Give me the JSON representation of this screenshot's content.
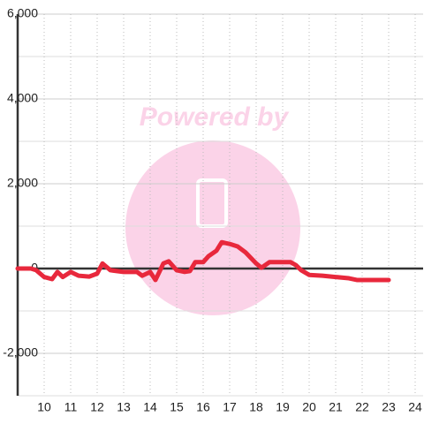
{
  "chart_data": {
    "type": "line",
    "watermark": "Powered by",
    "x": [
      9,
      9.5,
      9.7,
      10,
      10.3,
      10.5,
      10.7,
      11,
      11.3,
      11.7,
      12,
      12.2,
      12.5,
      13,
      13.5,
      13.7,
      14,
      14.2,
      14.5,
      14.7,
      15,
      15.3,
      15.5,
      15.7,
      16,
      16.2,
      16.5,
      16.7,
      17,
      17.3,
      17.6,
      18,
      18.2,
      18.5,
      19,
      19.3,
      19.5,
      19.7,
      20,
      20.5,
      21,
      21.5,
      21.8,
      22,
      23
    ],
    "series": [
      {
        "color": "#e8283c",
        "values": [
          0,
          0,
          -40,
          -200,
          -250,
          -80,
          -200,
          -80,
          -170,
          -190,
          -120,
          120,
          -40,
          -80,
          -80,
          -170,
          -80,
          -270,
          120,
          170,
          -40,
          -80,
          -60,
          150,
          150,
          290,
          420,
          620,
          580,
          520,
          380,
          120,
          20,
          150,
          150,
          150,
          80,
          -40,
          -150,
          -170,
          -200,
          -230,
          -270,
          -270,
          -270
        ]
      }
    ],
    "xlim": [
      9,
      24.3
    ],
    "xticks": [
      10,
      11,
      12,
      13,
      14,
      15,
      16,
      17,
      18,
      19,
      20,
      21,
      22,
      23,
      24
    ],
    "ylim": [
      -3000,
      6000
    ],
    "yticks": [
      {
        "value": -2000,
        "label": "-2,000"
      },
      0,
      {
        "value": 2000,
        "label": "2,000"
      },
      {
        "value": 4000,
        "label": "4,000"
      },
      {
        "value": 6000,
        "label": "6,000"
      }
    ],
    "yminor": [
      -3000,
      -1000,
      1000,
      3000,
      5000
    ],
    "grid": true
  }
}
